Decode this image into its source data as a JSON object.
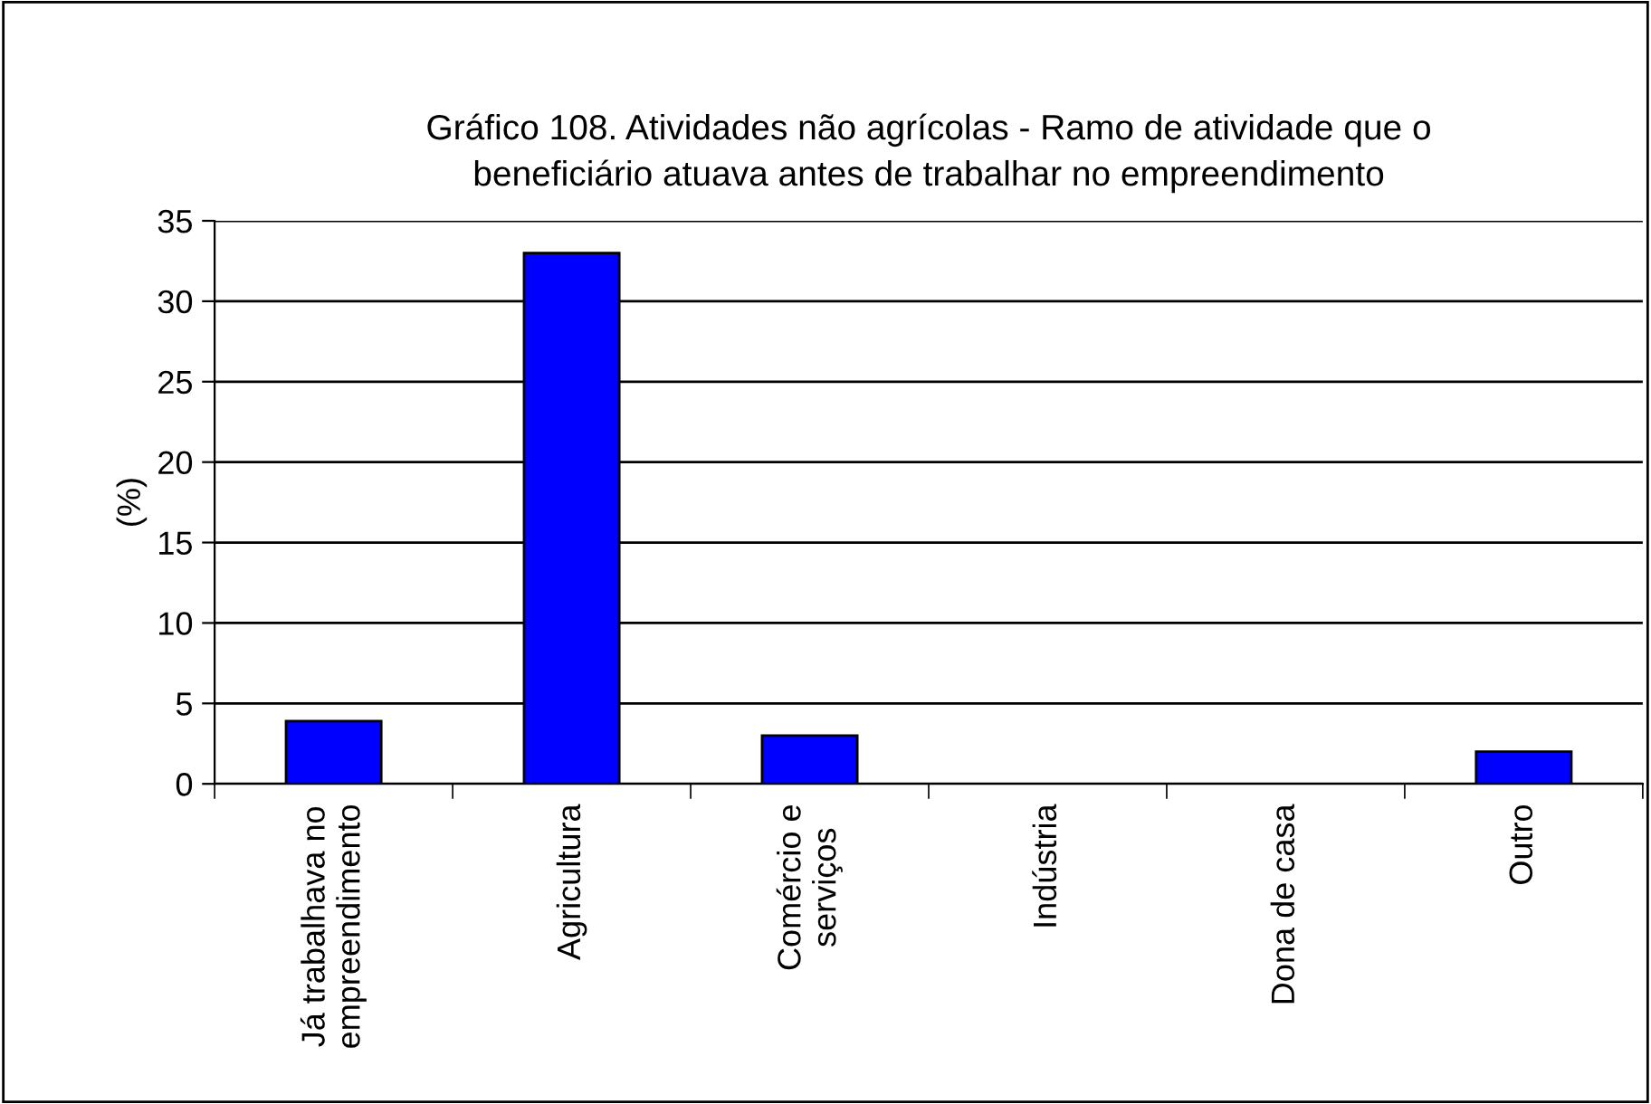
{
  "chart_data": {
    "type": "bar",
    "title": "Gráfico 108. Atividades não agrícolas - Ramo de atividade que o\nbeneficiário atuava antes de trabalhar no empreendimento",
    "ylabel": "(%)",
    "categories": [
      "Já trabalhava no\nempreendimento",
      "Agricultura",
      "Comércio e\nserviços",
      "Indústria",
      "Dona de casa",
      "Outro"
    ],
    "values": [
      3.9,
      33,
      3,
      0,
      0,
      2
    ],
    "color": "#0000ff",
    "ylim": [
      0,
      35
    ],
    "yticks": [
      0,
      5,
      10,
      15,
      20,
      25,
      30,
      35
    ],
    "grid": "y",
    "legend": false
  }
}
